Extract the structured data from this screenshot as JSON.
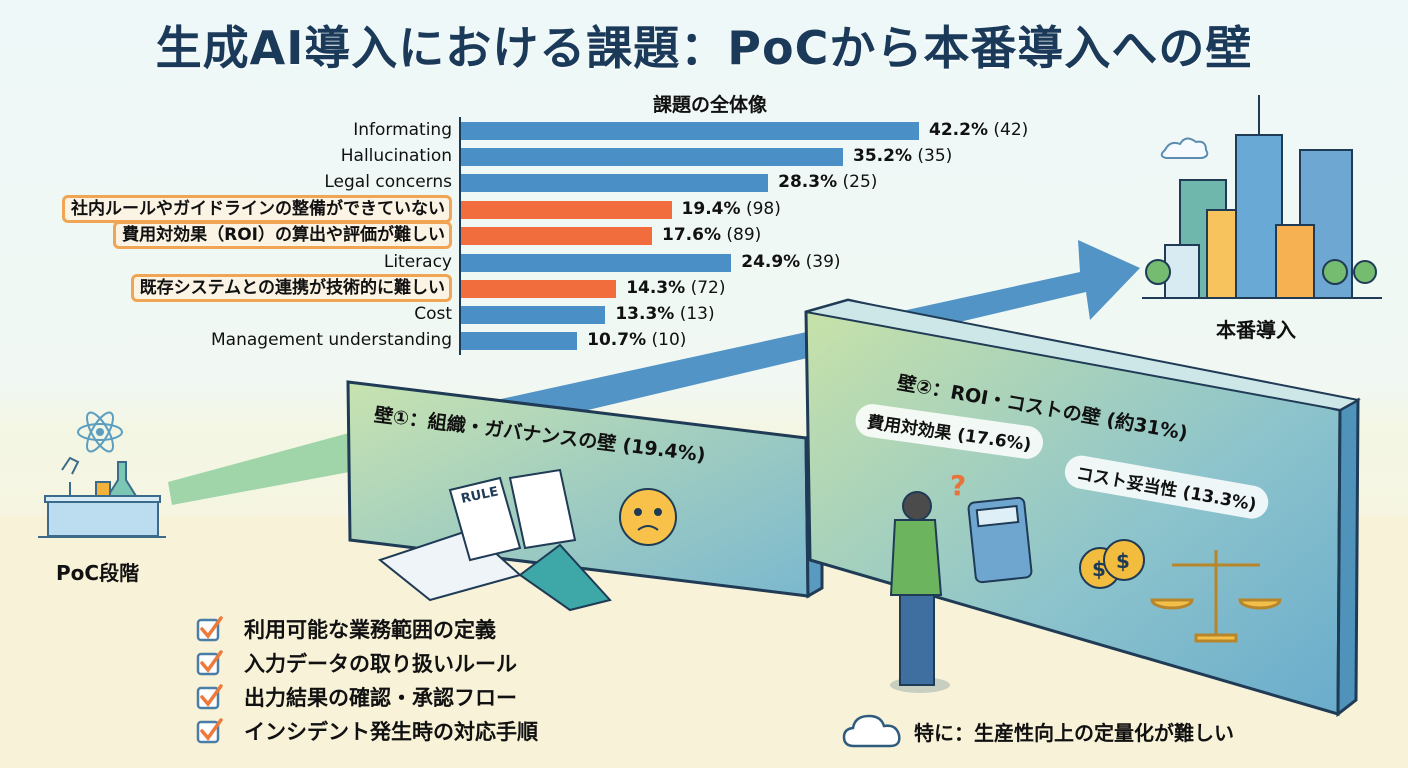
{
  "title": "生成AI導入における課題：PoCから本番導入への壁",
  "chart_data": {
    "type": "bar",
    "orientation": "horizontal",
    "title": "課題の全体像",
    "categories": [
      "Informating",
      "Hallucination",
      "Legal concerns",
      "社内ルールやガイドラインの整備ができていない",
      "費用対効果（ROI）の算出や評価が難しい",
      "Literacy",
      "既存システムとの連携が技術的に難しい",
      "Cost",
      "Management understanding"
    ],
    "values": [
      42.2,
      35.2,
      28.3,
      19.4,
      17.6,
      24.9,
      14.3,
      13.3,
      10.7
    ],
    "counts": [
      42,
      35,
      25,
      98,
      89,
      39,
      72,
      13,
      10
    ],
    "value_labels": [
      "42.2%",
      "35.2%",
      "28.3%",
      "19.4%",
      "17.6%",
      "24.9%",
      "14.3%",
      "13.3%",
      "10.7%"
    ],
    "count_labels": [
      "(42)",
      "(35)",
      "(25)",
      "(98)",
      "(89)",
      "(39)",
      "(72)",
      "(13)",
      "(10)"
    ],
    "highlighted": [
      false,
      false,
      false,
      true,
      true,
      false,
      true,
      false,
      false
    ],
    "colors": {
      "default": "#4a90c7",
      "highlight": "#f26d3d",
      "highlight_border": "#f0a555"
    },
    "xlabel": "",
    "ylabel": "",
    "grid": false,
    "legend": "none"
  },
  "stages": {
    "poc": "PoC段階",
    "production": "本番導入"
  },
  "wall1": {
    "title": "壁①：組織・ガバナンスの壁 (19.4%)",
    "book_label": "RULE",
    "checklist": [
      "利用可能な業務範囲の定義",
      "入力データの取り扱いルール",
      "出力結果の確認・承認フロー",
      "インシデント発生時の対応手順"
    ]
  },
  "wall2": {
    "title": "壁②：ROI・コストの壁 (約31%)",
    "bubble_roi": "費用対効果 (17.6%)",
    "bubble_cost": "コスト妥当性 (13.3%)",
    "calculator_display": "?",
    "question_mark": "?",
    "note": "特に：生産性向上の定量化が難しい"
  }
}
